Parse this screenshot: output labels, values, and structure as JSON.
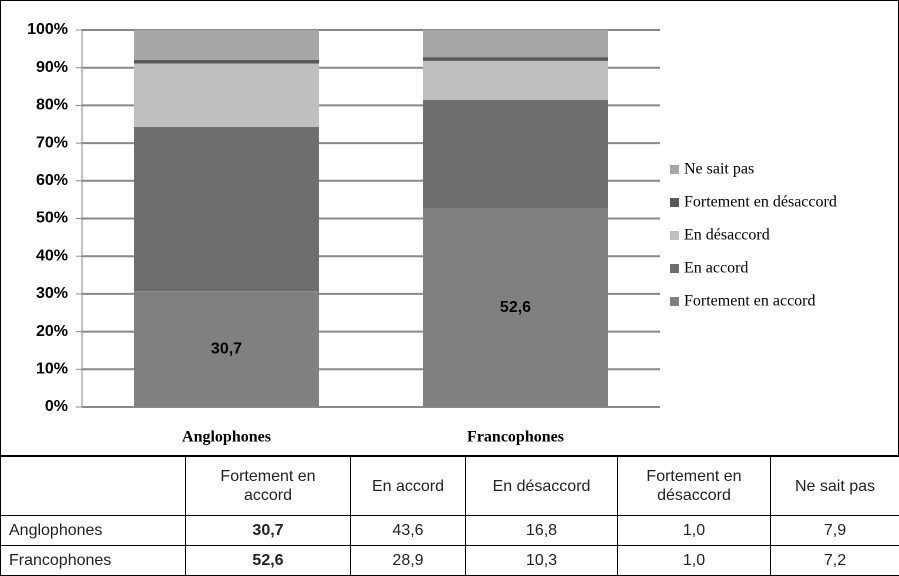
{
  "chart_data": {
    "type": "stacked_bar",
    "categories": [
      "Anglophones",
      "Francophones"
    ],
    "series": [
      {
        "name": "Fortement en accord",
        "color": "#808080",
        "values": [
          30.7,
          52.6
        ],
        "value_labels": [
          "30,7",
          "52,6"
        ]
      },
      {
        "name": "En accord",
        "color": "#6e6e6e",
        "values": [
          43.6,
          28.9
        ]
      },
      {
        "name": "En désaccord",
        "color": "#bfbfbf",
        "values": [
          16.8,
          10.3
        ]
      },
      {
        "name": "Fortement en désaccord",
        "color": "#595959",
        "values": [
          1.0,
          1.0
        ]
      },
      {
        "name": "Ne sait pas",
        "color": "#a6a6a6",
        "values": [
          7.9,
          7.2
        ]
      }
    ],
    "ylim": [
      0,
      100
    ],
    "yticks": [
      {
        "value": 0,
        "label": "0%"
      },
      {
        "value": 10,
        "label": "10%"
      },
      {
        "value": 20,
        "label": "20%"
      },
      {
        "value": 30,
        "label": "30%"
      },
      {
        "value": 40,
        "label": "40%"
      },
      {
        "value": 50,
        "label": "50%"
      },
      {
        "value": 60,
        "label": "60%"
      },
      {
        "value": 70,
        "label": "70%"
      },
      {
        "value": 80,
        "label": "80%"
      },
      {
        "value": 90,
        "label": "90%"
      },
      {
        "value": 100,
        "label": "100%"
      }
    ],
    "grid": true,
    "legend": "right"
  },
  "table": {
    "columns": [
      "Fortement en accord",
      "En accord",
      "En désaccord",
      "Fortement en désaccord",
      "Ne sait pas"
    ],
    "rows": [
      {
        "label": "Anglophones",
        "cells": [
          "30,7",
          "43,6",
          "16,8",
          "1,0",
          "7,9"
        ]
      },
      {
        "label": "Francophones",
        "cells": [
          "52,6",
          "28,9",
          "10,3",
          "1,0",
          "7,2"
        ]
      }
    ]
  }
}
